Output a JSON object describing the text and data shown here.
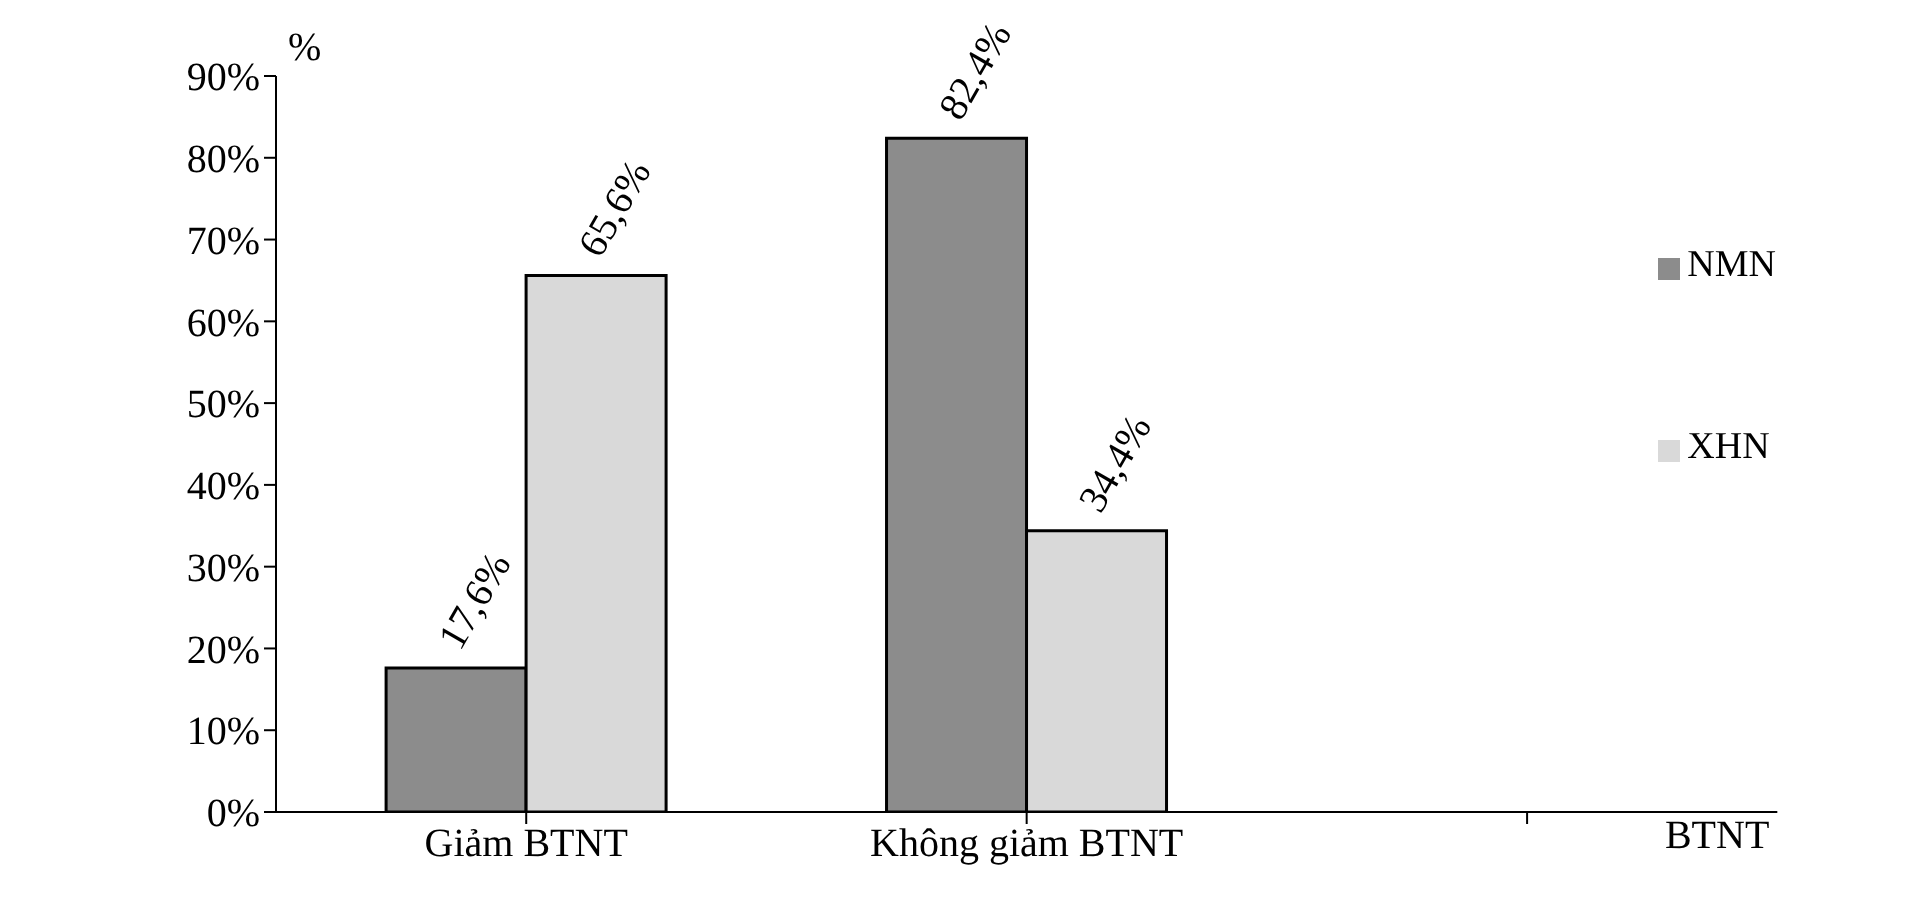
{
  "chart_data": {
    "type": "bar",
    "xlabel": "BTNT",
    "ylabel": "%",
    "categories": [
      "Giảm BTNT",
      "Không giảm BTNT",
      null
    ],
    "series": [
      {
        "name": "NMN",
        "color": "#8c8c8c",
        "values": [
          17.6,
          82.4,
          null
        ],
        "value_labels": [
          "17,6%",
          "82,4%",
          null
        ]
      },
      {
        "name": "XHN",
        "color": "#d9d9d9",
        "values": [
          65.6,
          34.4,
          null
        ],
        "value_labels": [
          "65,6%",
          "34,4%",
          null
        ]
      }
    ],
    "ylim": [
      0,
      90
    ],
    "yticks": [
      {
        "value": 0,
        "label": "0%"
      },
      {
        "value": 10,
        "label": "10%"
      },
      {
        "value": 20,
        "label": "20%"
      },
      {
        "value": 30,
        "label": "30%"
      },
      {
        "value": 40,
        "label": "40%"
      },
      {
        "value": 50,
        "label": "50%"
      },
      {
        "value": 60,
        "label": "60%"
      },
      {
        "value": 70,
        "label": "70%"
      },
      {
        "value": 80,
        "label": "80%"
      },
      {
        "value": 90,
        "label": "90%"
      }
    ],
    "grid": false,
    "legend": "right"
  }
}
